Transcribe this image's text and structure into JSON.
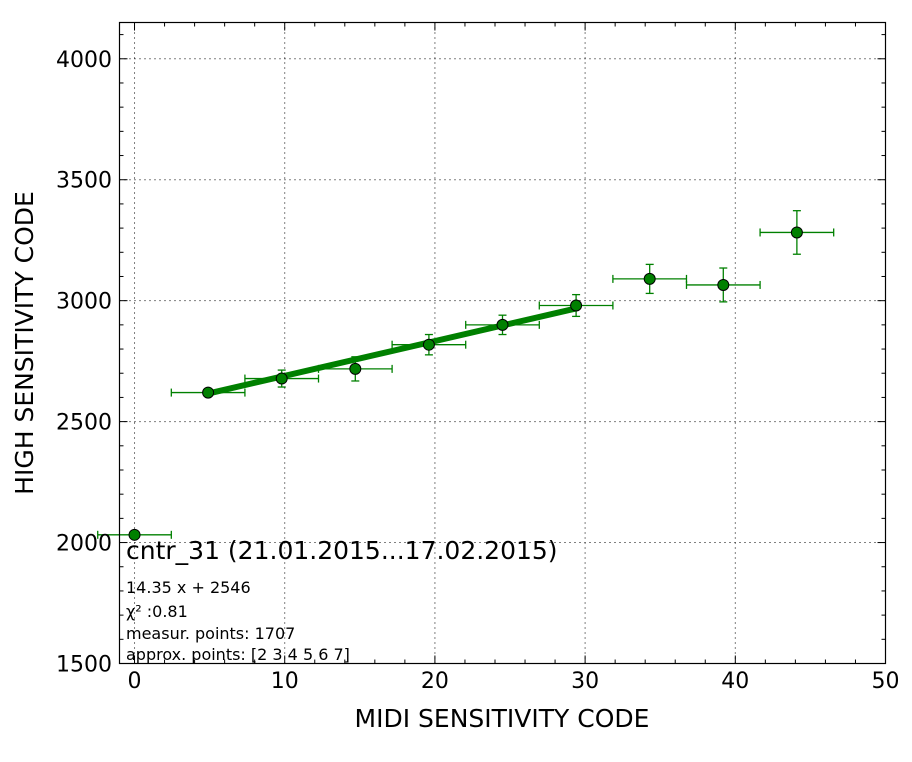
{
  "chart_data": {
    "type": "scatter",
    "title": "cntr_31 (21.01.2015...17.02.2015)",
    "xlabel": "MIDI SENSITIVITY CODE",
    "ylabel": "HIGH SENSITIVITY CODE",
    "xlim": [
      -1,
      50
    ],
    "ylim": [
      1500,
      4150
    ],
    "x_ticks": [
      0,
      10,
      20,
      30,
      40,
      50
    ],
    "x_tick_labels": [
      "0",
      "10",
      "20",
      "30",
      "40",
      "50"
    ],
    "y_ticks": [
      1500,
      2000,
      2500,
      3000,
      3500,
      4000
    ],
    "y_tick_labels": [
      "1500",
      "2000",
      "2500",
      "3000",
      "3500",
      "4000"
    ],
    "grid": true,
    "annotations": [
      "14.35 x + 2546",
      "χ² :0.81",
      "measur. points: 1707",
      "approx. points: [2 3 4 5 6 7]"
    ],
    "series": [
      {
        "type": "errorbar",
        "color": "#008000",
        "points": [
          {
            "x": 0.0,
            "y": 2032,
            "xerr": 2.45,
            "yerr": 0
          },
          {
            "x": 4.9,
            "y": 2620,
            "xerr": 2.45,
            "yerr": 12
          },
          {
            "x": 9.8,
            "y": 2678,
            "xerr": 2.45,
            "yerr": 35
          },
          {
            "x": 14.7,
            "y": 2718,
            "xerr": 2.45,
            "yerr": 50
          },
          {
            "x": 19.6,
            "y": 2818,
            "xerr": 2.45,
            "yerr": 42
          },
          {
            "x": 24.5,
            "y": 2900,
            "xerr": 2.45,
            "yerr": 40
          },
          {
            "x": 29.4,
            "y": 2980,
            "xerr": 2.45,
            "yerr": 45
          },
          {
            "x": 34.3,
            "y": 3090,
            "xerr": 2.45,
            "yerr": 60
          },
          {
            "x": 39.2,
            "y": 3065,
            "xerr": 2.45,
            "yerr": 70
          },
          {
            "x": 44.1,
            "y": 3282,
            "xerr": 2.45,
            "yerr": 90
          }
        ]
      },
      {
        "type": "line",
        "color": "#008000",
        "x": [
          4.9,
          29.4
        ],
        "y": [
          2616,
          2968
        ]
      }
    ]
  }
}
